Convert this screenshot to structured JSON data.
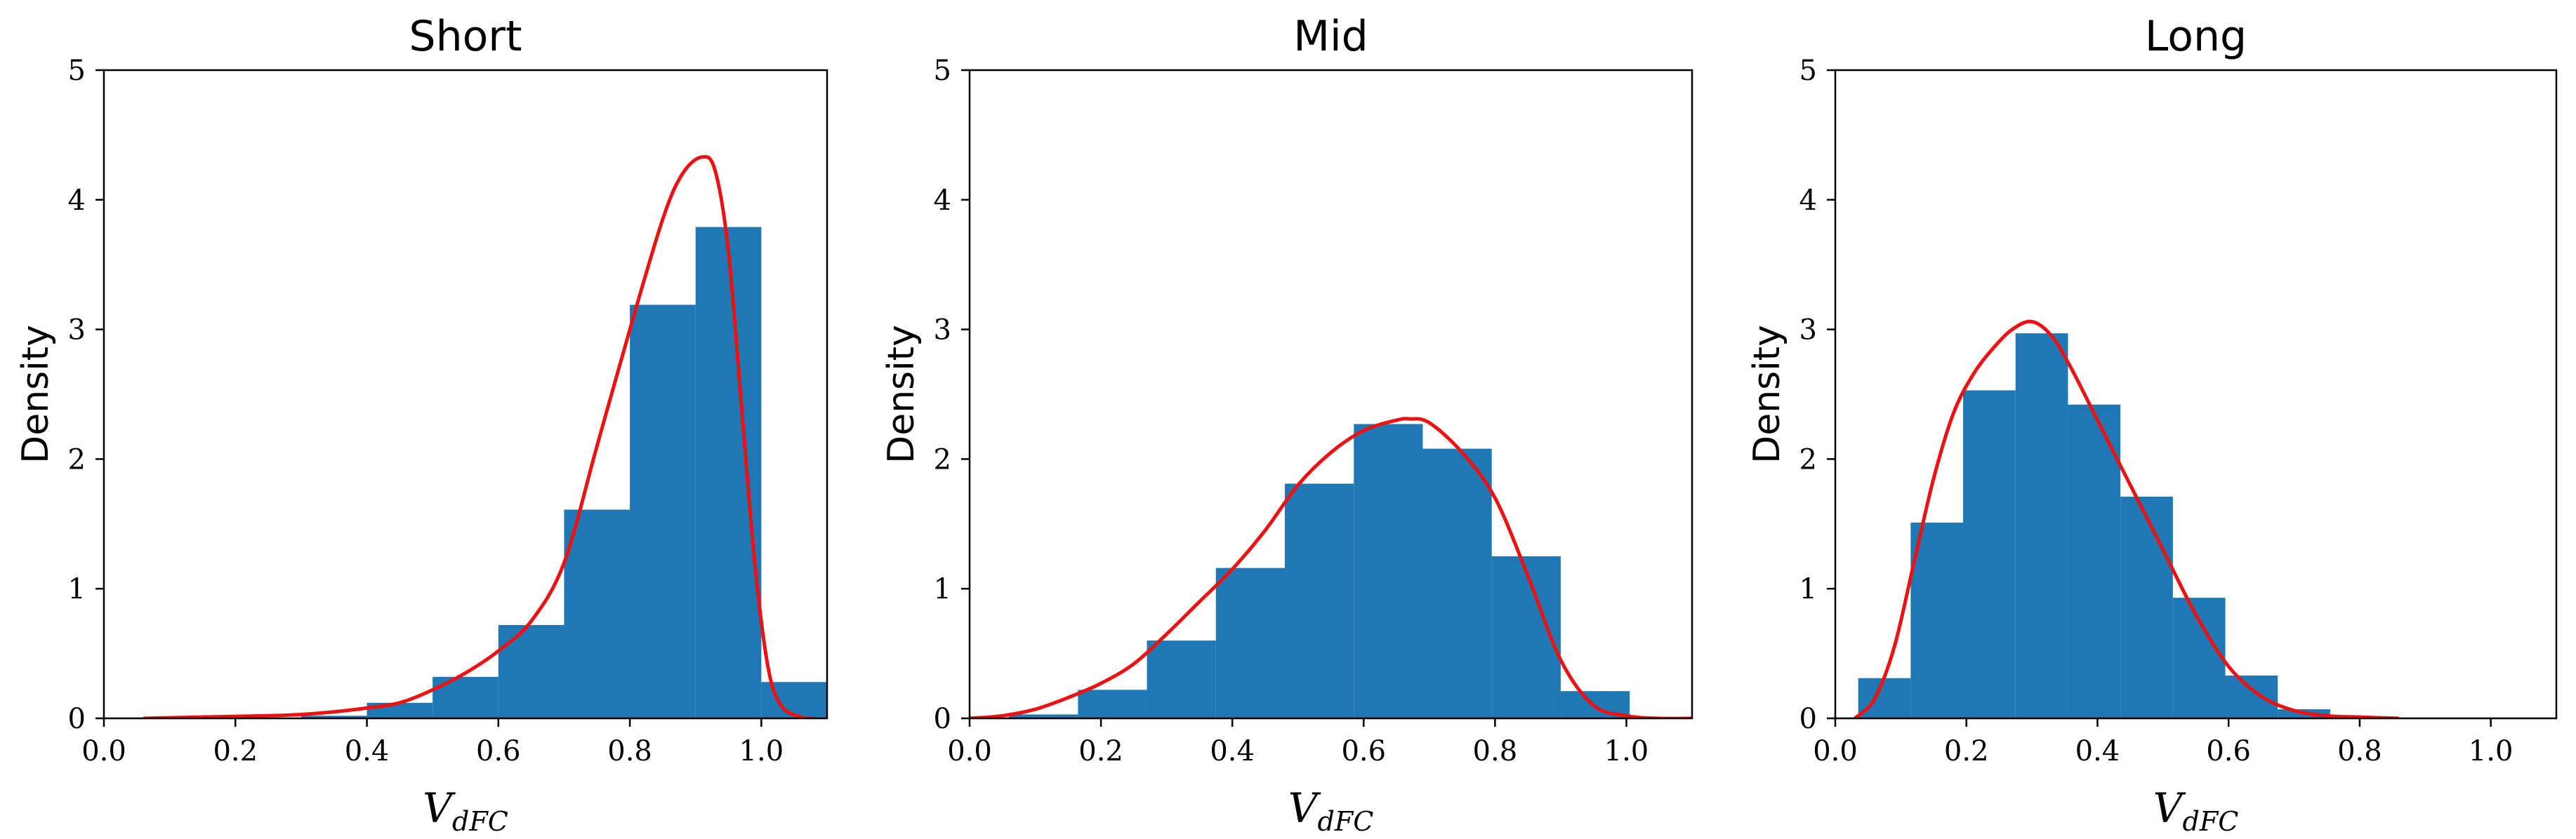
{
  "chart_data": [
    {
      "type": "bar",
      "title": "Short",
      "xlabel": "V",
      "xlabel_sub": "dFC",
      "ylabel": "Density",
      "xlim": [
        0.0,
        1.1
      ],
      "ylim": [
        0,
        5
      ],
      "xticks": [
        "0.0",
        "0.2",
        "0.4",
        "0.6",
        "0.8",
        "1.0"
      ],
      "yticks": [
        "0",
        "1",
        "2",
        "3",
        "4",
        "5"
      ],
      "bar_color": "#1f77b4",
      "curve_color": "#ee1111",
      "bins": [
        0.3,
        0.4,
        0.5,
        0.6,
        0.7,
        0.8,
        0.9,
        1.0,
        1.1
      ],
      "densities": [
        0.02,
        0.12,
        0.32,
        0.72,
        1.61,
        3.19,
        3.79,
        0.28
      ],
      "kde": {
        "x": [
          0.06,
          0.15,
          0.25,
          0.3,
          0.35,
          0.4,
          0.45,
          0.5,
          0.55,
          0.6,
          0.65,
          0.7,
          0.75,
          0.8,
          0.85,
          0.88,
          0.91,
          0.93,
          0.95,
          0.97,
          0.99,
          1.01,
          1.03,
          1.06,
          1.08
        ],
        "y": [
          0.0,
          0.01,
          0.02,
          0.03,
          0.05,
          0.08,
          0.12,
          0.22,
          0.35,
          0.52,
          0.75,
          1.2,
          2.1,
          3.0,
          3.85,
          4.2,
          4.33,
          4.22,
          3.6,
          2.4,
          1.2,
          0.4,
          0.1,
          0.01,
          0.0
        ]
      }
    },
    {
      "type": "bar",
      "title": "Mid",
      "xlabel": "V",
      "xlabel_sub": "dFC",
      "ylabel": "Density",
      "xlim": [
        0.0,
        1.1
      ],
      "ylim": [
        0,
        5
      ],
      "xticks": [
        "0.0",
        "0.2",
        "0.4",
        "0.6",
        "0.8",
        "1.0"
      ],
      "yticks": [
        "0",
        "1",
        "2",
        "3",
        "4",
        "5"
      ],
      "bar_color": "#1f77b4",
      "curve_color": "#ee1111",
      "bins": [
        0.06,
        0.165,
        0.27,
        0.375,
        0.48,
        0.585,
        0.69,
        0.795,
        0.9,
        1.005
      ],
      "densities": [
        0.03,
        0.22,
        0.6,
        1.16,
        1.81,
        2.27,
        2.08,
        1.25,
        0.21
      ],
      "kde": {
        "x": [
          0.0,
          0.05,
          0.1,
          0.15,
          0.2,
          0.25,
          0.3,
          0.35,
          0.4,
          0.45,
          0.5,
          0.55,
          0.6,
          0.65,
          0.67,
          0.7,
          0.75,
          0.8,
          0.85,
          0.9,
          0.95,
          1.0,
          1.05,
          1.1
        ],
        "y": [
          0.0,
          0.02,
          0.07,
          0.16,
          0.27,
          0.42,
          0.65,
          0.9,
          1.15,
          1.45,
          1.8,
          2.05,
          2.22,
          2.3,
          2.31,
          2.28,
          2.05,
          1.7,
          1.1,
          0.45,
          0.1,
          0.02,
          0.0,
          0.0
        ]
      }
    },
    {
      "type": "bar",
      "title": "Long",
      "xlabel": "V",
      "xlabel_sub": "dFC",
      "ylabel": "Density",
      "xlim": [
        0.0,
        1.1
      ],
      "ylim": [
        0,
        5
      ],
      "xticks": [
        "0.0",
        "0.2",
        "0.4",
        "0.6",
        "0.8",
        "1.0"
      ],
      "yticks": [
        "0",
        "1",
        "2",
        "3",
        "4",
        "5"
      ],
      "bar_color": "#1f77b4",
      "curve_color": "#ee1111",
      "bins": [
        0.035,
        0.115,
        0.195,
        0.275,
        0.355,
        0.435,
        0.515,
        0.595,
        0.675,
        0.755
      ],
      "densities": [
        0.31,
        1.51,
        2.53,
        2.97,
        2.42,
        1.71,
        0.93,
        0.33,
        0.07
      ],
      "kde": {
        "x": [
          0.03,
          0.06,
          0.09,
          0.12,
          0.15,
          0.18,
          0.21,
          0.24,
          0.27,
          0.3,
          0.33,
          0.36,
          0.4,
          0.45,
          0.5,
          0.55,
          0.6,
          0.65,
          0.7,
          0.75,
          0.8,
          0.86
        ],
        "y": [
          0.0,
          0.15,
          0.55,
          1.2,
          1.85,
          2.35,
          2.65,
          2.85,
          3.0,
          3.06,
          2.95,
          2.7,
          2.3,
          1.8,
          1.3,
          0.8,
          0.4,
          0.17,
          0.06,
          0.02,
          0.01,
          0.0
        ]
      }
    }
  ]
}
